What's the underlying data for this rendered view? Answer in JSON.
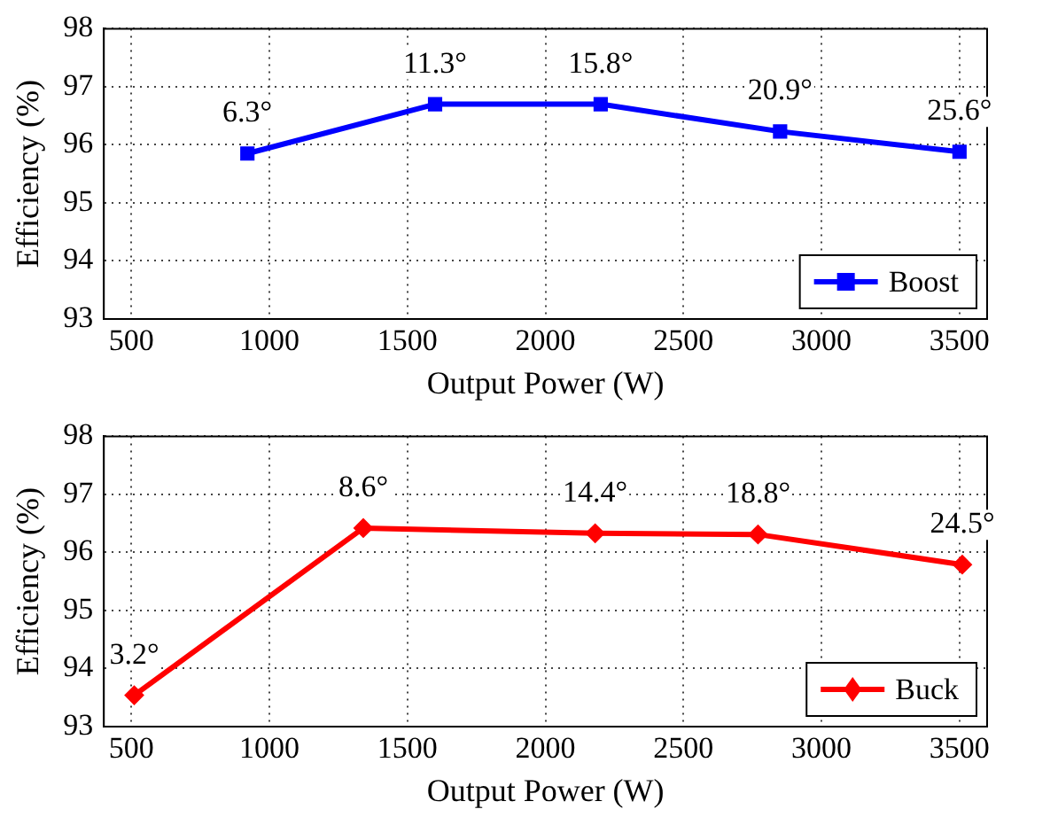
{
  "chart_data": [
    {
      "type": "line",
      "xlabel": "Output Power (W)",
      "ylabel": "Efficiency (%)",
      "x": [
        920,
        1600,
        2200,
        2850,
        3500
      ],
      "series": [
        {
          "name": "Boost",
          "color": "#0000ff",
          "values": [
            95.85,
            96.7,
            96.7,
            96.23,
            95.88
          ]
        }
      ],
      "xlim": [
        400,
        3600
      ],
      "xticks": [
        500,
        1000,
        1500,
        2000,
        2500,
        3000,
        3500
      ],
      "ylim": [
        93,
        98
      ],
      "yticks": [
        93,
        94,
        95,
        96,
        97,
        98
      ],
      "grid": true,
      "legend": "bottom right",
      "marker": "square",
      "line_style": "solid",
      "annotations": [
        {
          "text": "6.3°",
          "x": 920,
          "y": 95.85
        },
        {
          "text": "11.3°",
          "x": 1600,
          "y": 96.7
        },
        {
          "text": "15.8°",
          "x": 2200,
          "y": 96.7
        },
        {
          "text": "20.9°",
          "x": 2850,
          "y": 96.23
        },
        {
          "text": "25.6°",
          "x": 3500,
          "y": 95.88
        }
      ]
    },
    {
      "type": "line",
      "xlabel": "Output Power (W)",
      "ylabel": "Efficiency (%)",
      "x": [
        510,
        1340,
        2180,
        2770,
        3510
      ],
      "series": [
        {
          "name": "Buck",
          "color": "#ff0000",
          "values": [
            93.54,
            96.42,
            96.33,
            96.31,
            95.79
          ]
        }
      ],
      "xlim": [
        400,
        3600
      ],
      "xticks": [
        500,
        1000,
        1500,
        2000,
        2500,
        3000,
        3500
      ],
      "ylim": [
        93,
        98
      ],
      "yticks": [
        93,
        94,
        95,
        96,
        97,
        98
      ],
      "grid": true,
      "legend": "bottom right",
      "marker": "diamond",
      "line_style": "solid",
      "annotations": [
        {
          "text": "3.2°",
          "x": 510,
          "y": 93.54
        },
        {
          "text": "8.6°",
          "x": 1340,
          "y": 96.42
        },
        {
          "text": "14.4°",
          "x": 2180,
          "y": 96.33
        },
        {
          "text": "18.8°",
          "x": 2770,
          "y": 96.31
        },
        {
          "text": "24.5°",
          "x": 3510,
          "y": 95.79
        }
      ]
    }
  ]
}
